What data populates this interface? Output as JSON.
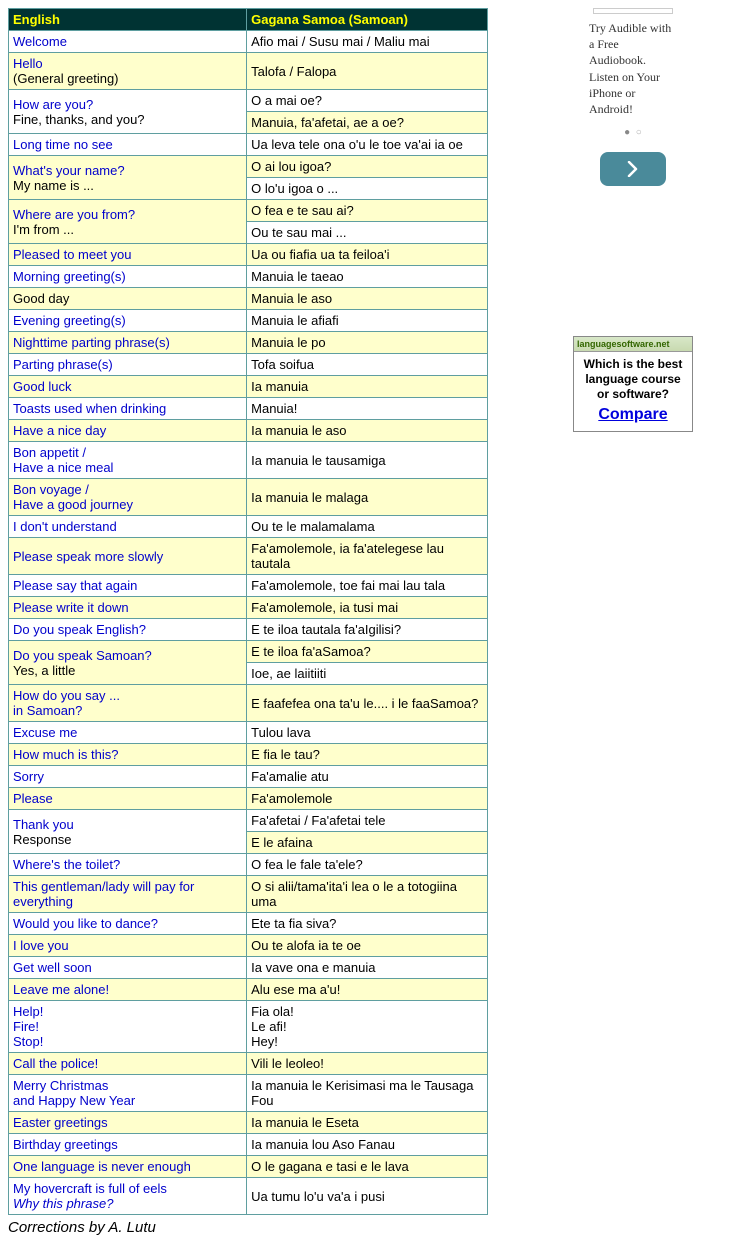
{
  "table": {
    "header_en": "English",
    "header_sam": "Gagana Samoa (Samoan)",
    "header_bg": "#003333",
    "header_fg": "#ffff00",
    "row_alt_bg": "#ffffcc",
    "row_bg": "#ffffff",
    "border_color": "#5f9ea0",
    "link_color": "#0000cc"
  },
  "rows": [
    {
      "i": 0,
      "cls": "a",
      "en_link": "Welcome",
      "sam": "Afio mai / Susu mai / Maliu mai"
    },
    {
      "i": 1,
      "cls": "b",
      "en_link": "Hello",
      "en_sub": "(General greeting)",
      "sam": "Talofa / Falopa"
    },
    {
      "i": 2,
      "cls": "a",
      "en_link": "How are you?",
      "en_sub": "Fine, thanks, and you?",
      "sam": "O a mai oe?",
      "rowspan": 2
    },
    {
      "i": 3,
      "cls": "b",
      "sam": "Manuia, fa'afetai, ae a oe?"
    },
    {
      "i": 4,
      "cls": "a",
      "en_link": "Long time no see",
      "sam": "Ua leva tele ona o'u le toe va'ai ia oe"
    },
    {
      "i": 5,
      "cls": "b",
      "en_link": "What's your name?",
      "en_sub": "My name is ...",
      "sam": "O ai lou igoa?",
      "rowspan": 2
    },
    {
      "i": 6,
      "cls": "a",
      "sam": "O lo'u igoa o ..."
    },
    {
      "i": 7,
      "cls": "b",
      "en_link": "Where are you from?",
      "en_sub": "I'm from ...",
      "sam": "O fea e te sau ai?",
      "rowspan": 2
    },
    {
      "i": 8,
      "cls": "a",
      "sam": "Ou te sau mai ..."
    },
    {
      "i": 9,
      "cls": "b",
      "en_link": "Pleased to meet you",
      "sam": "Ua ou fiafia ua ta feiloa'i"
    },
    {
      "i": 10,
      "cls": "a",
      "en_link": "Morning greeting(s)",
      "sam": "Manuia le taeao"
    },
    {
      "i": 11,
      "cls": "b",
      "en_plain": "Good day",
      "sam": "Manuia le aso"
    },
    {
      "i": 12,
      "cls": "a",
      "en_link": "Evening greeting(s)",
      "sam": "Manuia le afiafi"
    },
    {
      "i": 13,
      "cls": "b",
      "en_link": "Nighttime parting phrase(s)",
      "sam": "Manuia le po"
    },
    {
      "i": 14,
      "cls": "a",
      "en_link": "Parting phrase(s)",
      "sam": "Tofa soifua"
    },
    {
      "i": 15,
      "cls": "b",
      "en_link": "Good luck",
      "sam": "Ia manuia"
    },
    {
      "i": 16,
      "cls": "a",
      "en_link": "Toasts used when drinking",
      "sam": "Manuia!"
    },
    {
      "i": 17,
      "cls": "b",
      "en_link": "Have a nice day",
      "sam": "Ia manuia le aso"
    },
    {
      "i": 18,
      "cls": "a",
      "en_link": "Bon appetit /",
      "en_link2": "Have a nice meal",
      "sam": "Ia manuia le tausamiga"
    },
    {
      "i": 19,
      "cls": "b",
      "en_link": "Bon voyage /",
      "en_link2": "Have a good journey",
      "sam": "Ia manuia le malaga"
    },
    {
      "i": 20,
      "cls": "a",
      "en_link": "I don't understand",
      "sam": "Ou te le malamalama"
    },
    {
      "i": 21,
      "cls": "b",
      "en_link": "Please speak more slowly",
      "sam": "Fa'amolemole, ia fa'atelegese lau tautala"
    },
    {
      "i": 22,
      "cls": "a",
      "en_link": "Please say that again",
      "sam": "Fa'amolemole, toe fai mai lau tala"
    },
    {
      "i": 23,
      "cls": "b",
      "en_link": "Please write it down",
      "sam": "Fa'amolemole, ia tusi mai"
    },
    {
      "i": 24,
      "cls": "a",
      "en_link": "Do you speak English?",
      "sam": "E te iloa tautala fa'aIgilisi?"
    },
    {
      "i": 25,
      "cls": "b",
      "en_link": "Do you speak Samoan?",
      "en_sub": "Yes, a little",
      "sam": "E te iloa fa'aSamoa?",
      "rowspan": 2
    },
    {
      "i": 26,
      "cls": "a",
      "sam": "Ioe, ae laiitiiti"
    },
    {
      "i": 27,
      "cls": "b",
      "en_link": "How do you say ...",
      "en_link2": "in Samoan?",
      "sam": "E faafefea ona ta'u le.... i le faaSamoa?"
    },
    {
      "i": 28,
      "cls": "a",
      "en_link": "Excuse me",
      "sam": "Tulou lava"
    },
    {
      "i": 29,
      "cls": "b",
      "en_link": "How much is this?",
      "sam": "E fia le tau?"
    },
    {
      "i": 30,
      "cls": "a",
      "en_link": "Sorry",
      "sam": "Fa'amalie atu"
    },
    {
      "i": 31,
      "cls": "b",
      "en_link": "Please",
      "sam": "Fa'amolemole"
    },
    {
      "i": 32,
      "cls": "a",
      "en_link": "Thank you",
      "en_sub": "Response",
      "sam": "Fa'afetai / Fa'afetai tele",
      "rowspan": 2
    },
    {
      "i": 33,
      "cls": "b",
      "sam": "E le afaina"
    },
    {
      "i": 34,
      "cls": "a",
      "en_link": "Where's the toilet?",
      "sam": "O fea le fale ta'ele?"
    },
    {
      "i": 35,
      "cls": "b",
      "en_link": "This gentleman/lady will pay for everything",
      "sam": "O si alii/tama'ita'i lea o le a totogiina uma"
    },
    {
      "i": 36,
      "cls": "a",
      "en_link": "Would you like to dance?",
      "sam": "Ete ta fia siva?"
    },
    {
      "i": 37,
      "cls": "b",
      "en_link": "I love you",
      "sam": "Ou te alofa ia te oe"
    },
    {
      "i": 38,
      "cls": "a",
      "en_link": "Get well soon",
      "sam": "Ia vave ona e manuia"
    },
    {
      "i": 39,
      "cls": "b",
      "en_link": "Leave me alone!",
      "sam": "Alu ese ma a'u!"
    },
    {
      "i": 40,
      "cls": "a",
      "en_link": "Help!",
      "en_link2": "Fire!",
      "en_link3": "Stop!",
      "sam": "Fia ola!",
      "sam2": "Le afi!",
      "sam3": "Hey!"
    },
    {
      "i": 41,
      "cls": "b",
      "en_link": "Call the police!",
      "sam": "Vili le leoleo!"
    },
    {
      "i": 42,
      "cls": "a",
      "en_link": "Merry Christmas",
      "en_link2": "and Happy New Year",
      "sam": "Ia manuia le Kerisimasi ma le Tausaga Fou"
    },
    {
      "i": 43,
      "cls": "b",
      "en_link": "Easter greetings",
      "sam": "Ia manuia le Eseta"
    },
    {
      "i": 44,
      "cls": "a",
      "en_link": "Birthday greetings",
      "sam": "Ia manuia lou Aso Fanau"
    },
    {
      "i": 45,
      "cls": "b",
      "en_link": "One language is never enough",
      "sam": "O le gagana e tasi e le lava"
    },
    {
      "i": 46,
      "cls": "a",
      "en_link": "My hovercraft is full of eels",
      "en_ital": "Why this phrase?",
      "sam": "Ua tumu lo'u va'a i pusi"
    }
  ],
  "credit": "Corrections by A. Lutu",
  "sidebar": {
    "audible": {
      "text": "Try Audible with a Free Audiobook. Listen on Your iPhone or Android!"
    },
    "arrow_bg": "#4a8a9a",
    "compare": {
      "bar": "languagesoftware.net",
      "line1": "Which is the best",
      "line2": "language course",
      "line3": "or software?",
      "cta": "Compare"
    }
  }
}
